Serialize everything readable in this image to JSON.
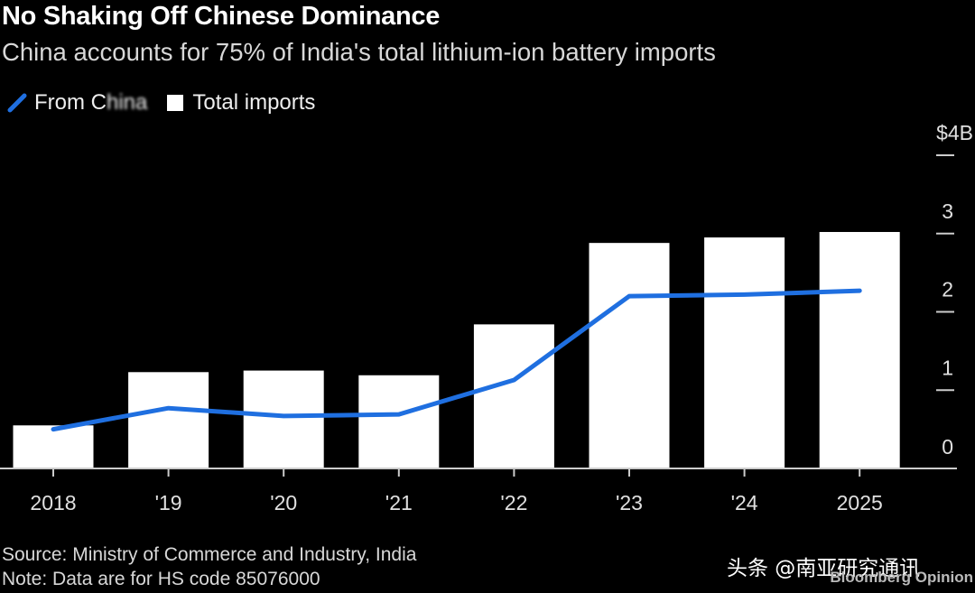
{
  "header": {
    "title": "No Shaking Off Chinese Dominance",
    "subtitle": "China accounts for 75% of India's total lithium-ion battery imports"
  },
  "legend": {
    "line_label": "From C",
    "line_label_obscured": "hina",
    "bar_label": "Total imports"
  },
  "footer": {
    "source": "Source: Ministry of Commerce and Industry, India",
    "note": "Note: Data are for HS code 85076000"
  },
  "watermark": {
    "text": "头条 @南亚研究通讯",
    "brand": "Bloomberg Opinion"
  },
  "colors": {
    "background": "#000000",
    "bar": "#ffffff",
    "line": "#1f6fe0",
    "axis": "#cccccc"
  },
  "chart_data": {
    "type": "bar",
    "categories": [
      "2018",
      "'19",
      "'20",
      "'21",
      "'22",
      "'23",
      "'24",
      "2025"
    ],
    "series": [
      {
        "name": "Total imports",
        "type": "bar",
        "values": [
          0.55,
          1.23,
          1.25,
          1.19,
          1.84,
          2.88,
          2.95,
          3.02
        ]
      },
      {
        "name": "From China",
        "type": "line",
        "values": [
          0.5,
          0.77,
          0.67,
          0.69,
          1.13,
          2.2,
          2.22,
          2.27
        ]
      }
    ],
    "y_ticks": [
      "0",
      "1",
      "2",
      "3",
      "$4B"
    ],
    "y_tick_values": [
      0,
      1,
      2,
      3,
      4
    ],
    "ylim": [
      0,
      4
    ],
    "y_axis_side": "right",
    "grid": false,
    "legend_position": "top-left"
  }
}
